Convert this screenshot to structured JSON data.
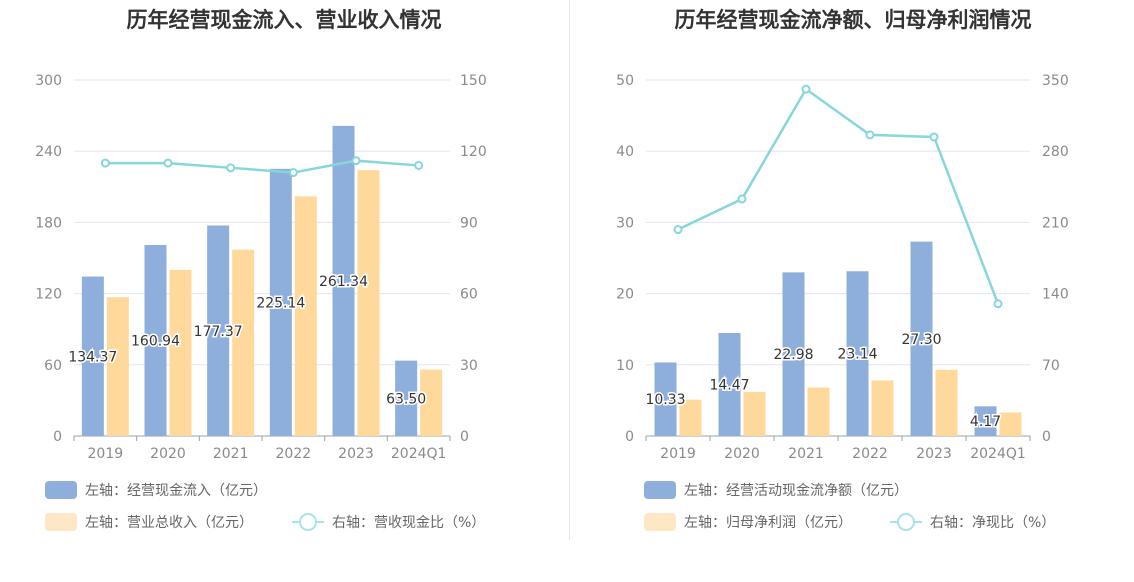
{
  "colors": {
    "bar_a": "#8eaedb",
    "bar_b": "#ffd99c",
    "line": "#86d6dc",
    "legend_b": "#fde7c4",
    "legend_line": "#a8e3e7",
    "grid": "#e1e6f0",
    "axis": "#9aa0a6"
  },
  "chart_data": [
    {
      "type": "bar",
      "title": "历年经营现金流入、营业收入情况",
      "categories": [
        "2019",
        "2020",
        "2021",
        "2022",
        "2023",
        "2024Q1"
      ],
      "y_left": {
        "min": 0,
        "max": 300,
        "ticks": [
          "0",
          "60",
          "120",
          "180",
          "240",
          "300"
        ]
      },
      "y_right": {
        "min": 0,
        "max": 150,
        "ticks": [
          "0",
          "30",
          "60",
          "90",
          "120",
          "150"
        ]
      },
      "series": [
        {
          "name": "左轴：经营现金流入（亿元）",
          "type": "bar",
          "axis": "left",
          "values": [
            134.37,
            160.94,
            177.37,
            225.14,
            261.34,
            63.5
          ],
          "labels": [
            "134.37",
            "160.94",
            "177.37",
            "225.14",
            "261.34",
            "63.50"
          ]
        },
        {
          "name": "左轴：营业总收入（亿元）",
          "type": "bar",
          "axis": "left",
          "values": [
            117,
            140,
            157,
            202,
            224,
            56
          ]
        },
        {
          "name": "右轴：营收现金比（%）",
          "type": "line",
          "axis": "right",
          "values": [
            115,
            115,
            113,
            111,
            116,
            114
          ]
        }
      ]
    },
    {
      "type": "bar",
      "title": "历年经营现金流净额、归母净利润情况",
      "categories": [
        "2019",
        "2020",
        "2021",
        "2022",
        "2023",
        "2024Q1"
      ],
      "y_left": {
        "min": 0,
        "max": 50,
        "ticks": [
          "0",
          "10",
          "20",
          "30",
          "40",
          "50"
        ]
      },
      "y_right": {
        "min": 0,
        "max": 350,
        "ticks": [
          "0",
          "70",
          "140",
          "210",
          "280",
          "350"
        ]
      },
      "series": [
        {
          "name": "左轴：经营活动现金流净额（亿元）",
          "type": "bar",
          "axis": "left",
          "values": [
            10.33,
            14.47,
            22.98,
            23.14,
            27.3,
            4.17
          ],
          "labels": [
            "10.33",
            "14.47",
            "22.98",
            "23.14",
            "27.30",
            "4.17"
          ]
        },
        {
          "name": "左轴：归母净利润（亿元）",
          "type": "bar",
          "axis": "left",
          "values": [
            5.1,
            6.2,
            6.8,
            7.8,
            9.3,
            3.3
          ]
        },
        {
          "name": "右轴：净现比（%）",
          "type": "line",
          "axis": "right",
          "values": [
            203,
            233,
            341,
            296,
            294,
            130
          ]
        }
      ]
    }
  ]
}
